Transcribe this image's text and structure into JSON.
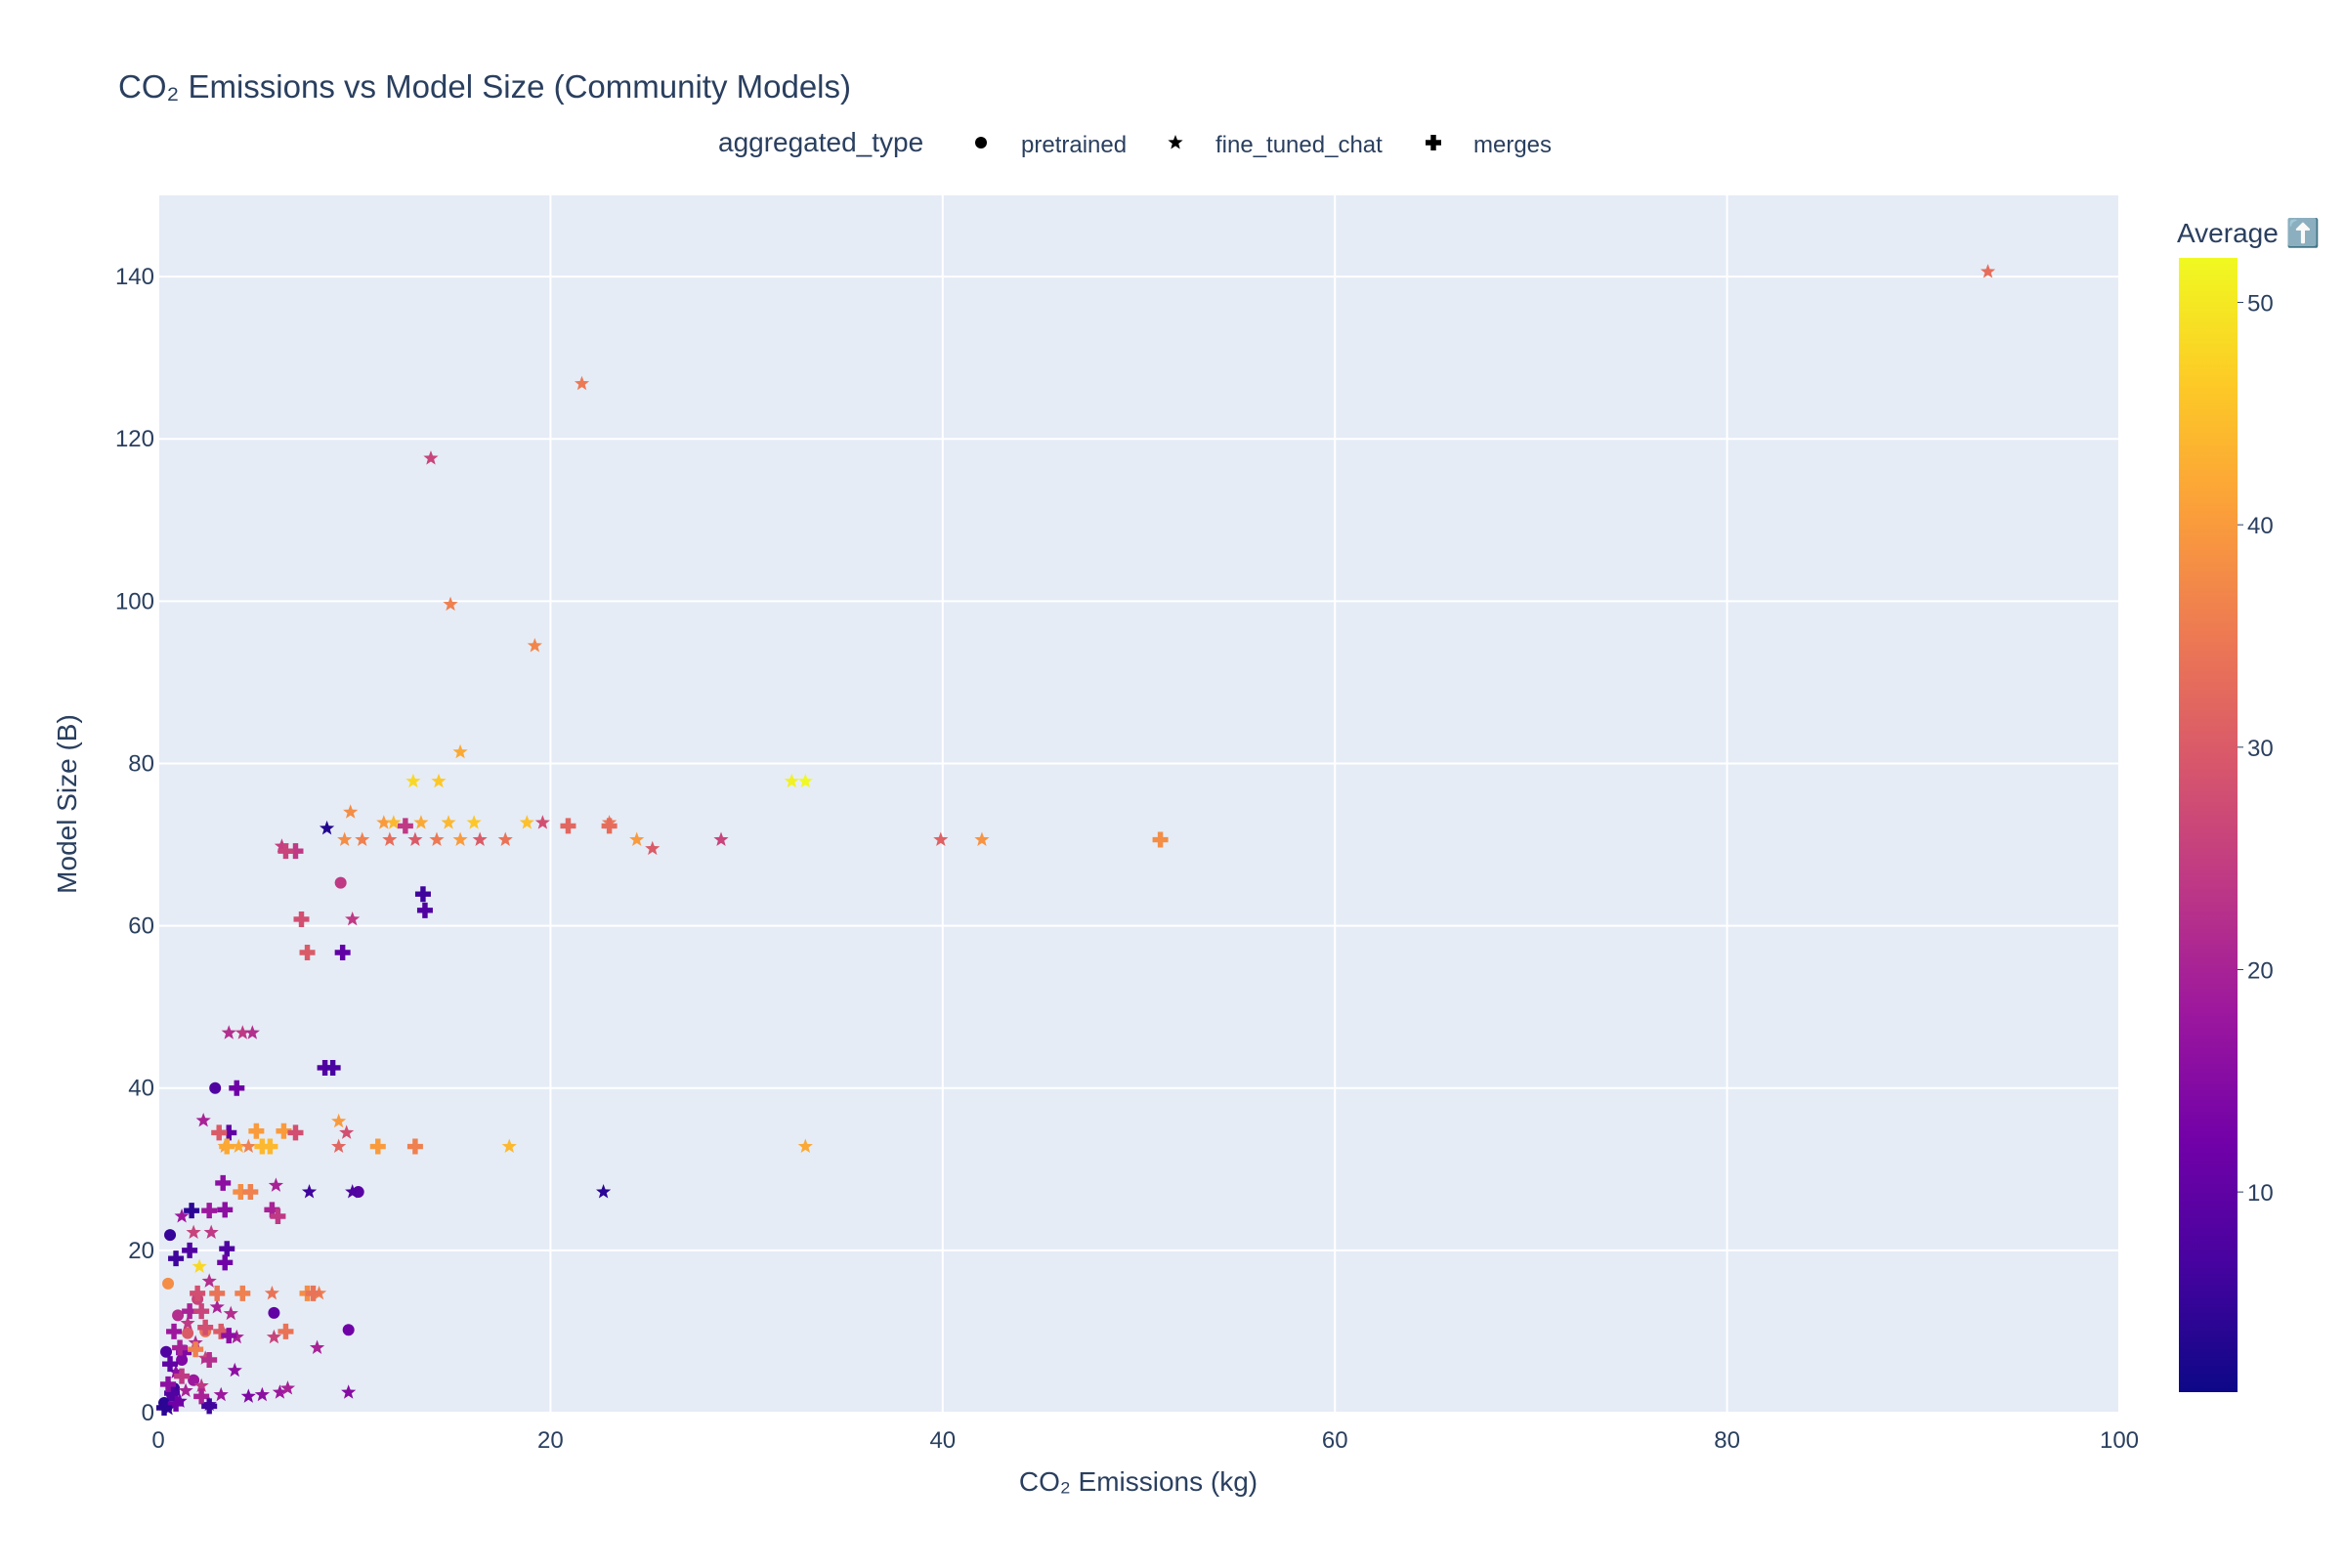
{
  "chart_data": {
    "type": "scatter",
    "title": "CO₂ Emissions vs Model Size (Community Models)",
    "xlabel": "CO₂ Emissions (kg)",
    "ylabel": "Model Size (B)",
    "xlim": [
      0,
      100
    ],
    "ylim": [
      0,
      150
    ],
    "x_ticks": [
      0,
      20,
      40,
      60,
      80,
      100
    ],
    "y_ticks": [
      0,
      20,
      40,
      60,
      80,
      100,
      120,
      140
    ],
    "grid": true,
    "legend": {
      "title": "aggregated_type",
      "placement": "top",
      "entries": [
        {
          "name": "pretrained",
          "symbol": "circle"
        },
        {
          "name": "fine_tuned_chat",
          "symbol": "star"
        },
        {
          "name": "merges",
          "symbol": "cross"
        }
      ]
    },
    "colorbar": {
      "title": "Average ⬆️",
      "min": 1,
      "max": 52,
      "ticks": [
        10,
        20,
        30,
        40,
        50
      ],
      "colorscale": [
        "#0d0887",
        "#46039f",
        "#7201a8",
        "#9c179e",
        "#bd3786",
        "#d8576b",
        "#ed7953",
        "#fb9f3a",
        "#fdca26",
        "#f0f921"
      ]
    },
    "series": [
      {
        "name": "pretrained",
        "symbol": "circle",
        "points": [
          [
            0.6,
            21.9,
            5
          ],
          [
            0.5,
            15.9,
            38
          ],
          [
            0.4,
            7.5,
            8
          ],
          [
            0.8,
            3.0,
            6
          ],
          [
            0.3,
            1.2,
            4
          ],
          [
            1.0,
            12.0,
            22
          ],
          [
            1.5,
            9.8,
            30
          ],
          [
            1.2,
            6.5,
            14
          ],
          [
            0.7,
            2.2,
            9
          ],
          [
            2.0,
            14.0,
            26
          ],
          [
            2.9,
            40.0,
            8
          ],
          [
            5.9,
            12.3,
            10
          ],
          [
            9.7,
            10.2,
            12
          ],
          [
            9.3,
            65.3,
            24
          ],
          [
            10.2,
            27.2,
            9
          ],
          [
            1.8,
            4.0,
            18
          ],
          [
            2.4,
            10.0,
            34
          ]
        ]
      },
      {
        "name": "fine_tuned_chat",
        "symbol": "star",
        "points": [
          [
            93.3,
            140.6,
            33
          ],
          [
            21.6,
            126.8,
            35
          ],
          [
            13.9,
            117.6,
            26
          ],
          [
            14.9,
            99.6,
            36
          ],
          [
            19.2,
            94.5,
            37
          ],
          [
            15.4,
            81.4,
            42
          ],
          [
            13.0,
            77.8,
            48
          ],
          [
            14.3,
            77.8,
            46
          ],
          [
            32.3,
            77.8,
            51
          ],
          [
            33.0,
            77.8,
            52
          ],
          [
            9.8,
            74.0,
            38
          ],
          [
            11.5,
            72.7,
            40
          ],
          [
            12.0,
            72.7,
            44
          ],
          [
            13.4,
            72.7,
            42
          ],
          [
            14.8,
            72.7,
            44
          ],
          [
            16.1,
            72.7,
            46
          ],
          [
            18.8,
            72.7,
            45
          ],
          [
            19.6,
            72.7,
            28
          ],
          [
            23.0,
            72.7,
            35
          ],
          [
            8.6,
            72.0,
            3
          ],
          [
            9.5,
            70.6,
            38
          ],
          [
            10.4,
            70.6,
            36
          ],
          [
            11.8,
            70.6,
            33
          ],
          [
            13.1,
            70.6,
            30
          ],
          [
            14.2,
            70.6,
            35
          ],
          [
            15.4,
            70.6,
            40
          ],
          [
            16.4,
            70.6,
            30
          ],
          [
            17.7,
            70.6,
            34
          ],
          [
            24.4,
            70.6,
            40
          ],
          [
            28.7,
            70.6,
            26
          ],
          [
            39.9,
            70.6,
            31
          ],
          [
            42.0,
            70.6,
            39
          ],
          [
            25.2,
            69.5,
            30
          ],
          [
            6.3,
            69.8,
            25
          ],
          [
            9.9,
            60.8,
            24
          ],
          [
            3.6,
            46.8,
            22
          ],
          [
            4.3,
            46.8,
            24
          ],
          [
            4.8,
            46.8,
            22
          ],
          [
            9.2,
            35.9,
            40
          ],
          [
            9.6,
            34.5,
            28
          ],
          [
            17.9,
            32.8,
            44
          ],
          [
            33.0,
            32.8,
            42
          ],
          [
            9.2,
            32.8,
            32
          ],
          [
            7.7,
            27.2,
            6
          ],
          [
            9.9,
            27.2,
            8
          ],
          [
            22.7,
            27.2,
            4
          ],
          [
            3.4,
            32.8,
            40
          ],
          [
            4.1,
            32.8,
            42
          ],
          [
            4.6,
            32.8,
            36
          ],
          [
            2.3,
            36.0,
            20
          ],
          [
            5.8,
            14.7,
            34
          ],
          [
            8.2,
            14.7,
            36
          ],
          [
            4.0,
            9.3,
            20
          ],
          [
            5.9,
            9.3,
            26
          ],
          [
            8.1,
            8.0,
            20
          ],
          [
            3.9,
            5.2,
            16
          ],
          [
            4.6,
            2.0,
            14
          ],
          [
            5.3,
            2.2,
            16
          ],
          [
            6.2,
            2.5,
            18
          ],
          [
            6.6,
            3.0,
            20
          ],
          [
            9.7,
            2.5,
            15
          ],
          [
            2.6,
            1.0,
            8
          ],
          [
            1.2,
            24.2,
            18
          ],
          [
            1.8,
            22.2,
            26
          ],
          [
            2.7,
            22.2,
            24
          ],
          [
            2.1,
            18.0,
            48
          ],
          [
            2.6,
            16.2,
            22
          ],
          [
            3.0,
            13.0,
            20
          ],
          [
            1.5,
            11.0,
            24
          ],
          [
            1.9,
            8.6,
            22
          ],
          [
            0.9,
            5.0,
            16
          ],
          [
            1.4,
            2.7,
            20
          ],
          [
            2.2,
            3.3,
            24
          ],
          [
            3.2,
            2.2,
            18
          ],
          [
            0.5,
            0.5,
            6
          ],
          [
            1.1,
            1.4,
            12
          ],
          [
            2.4,
            6.7,
            26
          ],
          [
            3.3,
            10.0,
            30
          ],
          [
            3.7,
            12.2,
            22
          ],
          [
            6.0,
            28.0,
            20
          ]
        ]
      },
      {
        "name": "merges",
        "symbol": "cross",
        "points": [
          [
            51.1,
            70.6,
            38
          ],
          [
            20.9,
            72.3,
            32
          ],
          [
            23.0,
            72.3,
            33
          ],
          [
            12.6,
            72.3,
            24
          ],
          [
            7.0,
            69.2,
            24
          ],
          [
            6.5,
            69.2,
            26
          ],
          [
            7.3,
            60.8,
            28
          ],
          [
            7.6,
            56.7,
            30
          ],
          [
            9.4,
            56.7,
            10
          ],
          [
            13.5,
            63.9,
            6
          ],
          [
            13.6,
            61.9,
            8
          ],
          [
            8.5,
            42.5,
            8
          ],
          [
            8.9,
            42.5,
            7
          ],
          [
            4.0,
            40.0,
            12
          ],
          [
            3.6,
            34.5,
            10
          ],
          [
            5.0,
            34.7,
            40
          ],
          [
            6.4,
            34.7,
            40
          ],
          [
            7.0,
            34.5,
            28
          ],
          [
            3.1,
            34.5,
            30
          ],
          [
            3.5,
            32.8,
            42
          ],
          [
            5.3,
            32.8,
            44
          ],
          [
            5.7,
            32.8,
            44
          ],
          [
            11.2,
            32.8,
            40
          ],
          [
            13.1,
            32.8,
            36
          ],
          [
            4.2,
            27.2,
            38
          ],
          [
            4.7,
            27.2,
            36
          ],
          [
            3.3,
            28.3,
            16
          ],
          [
            3.4,
            25.0,
            16
          ],
          [
            5.8,
            25.0,
            20
          ],
          [
            6.1,
            24.2,
            24
          ],
          [
            3.5,
            20.2,
            8
          ],
          [
            3.4,
            18.5,
            12
          ],
          [
            2.6,
            24.9,
            18
          ],
          [
            1.7,
            24.9,
            4
          ],
          [
            0.9,
            19.0,
            6
          ],
          [
            1.6,
            20.0,
            8
          ],
          [
            3.0,
            14.7,
            34
          ],
          [
            4.3,
            14.7,
            36
          ],
          [
            7.6,
            14.7,
            38
          ],
          [
            7.9,
            14.7,
            34
          ],
          [
            2.0,
            14.7,
            28
          ],
          [
            3.2,
            10.0,
            30
          ],
          [
            3.6,
            9.5,
            16
          ],
          [
            6.5,
            10.0,
            34
          ],
          [
            2.6,
            6.5,
            22
          ],
          [
            1.3,
            7.4,
            14
          ],
          [
            0.6,
            6.0,
            10
          ],
          [
            0.9,
            1.1,
            12
          ],
          [
            1.2,
            4.5,
            24
          ],
          [
            2.2,
            2.0,
            20
          ],
          [
            0.7,
            2.4,
            8
          ],
          [
            2.6,
            0.8,
            6
          ],
          [
            1.6,
            12.5,
            20
          ],
          [
            0.8,
            10.0,
            18
          ],
          [
            2.2,
            12.5,
            26
          ],
          [
            2.4,
            10.5,
            28
          ],
          [
            1.1,
            8.0,
            20
          ],
          [
            0.5,
            3.5,
            16
          ],
          [
            1.9,
            7.8,
            36
          ],
          [
            0.3,
            0.6,
            4
          ]
        ]
      }
    ]
  }
}
